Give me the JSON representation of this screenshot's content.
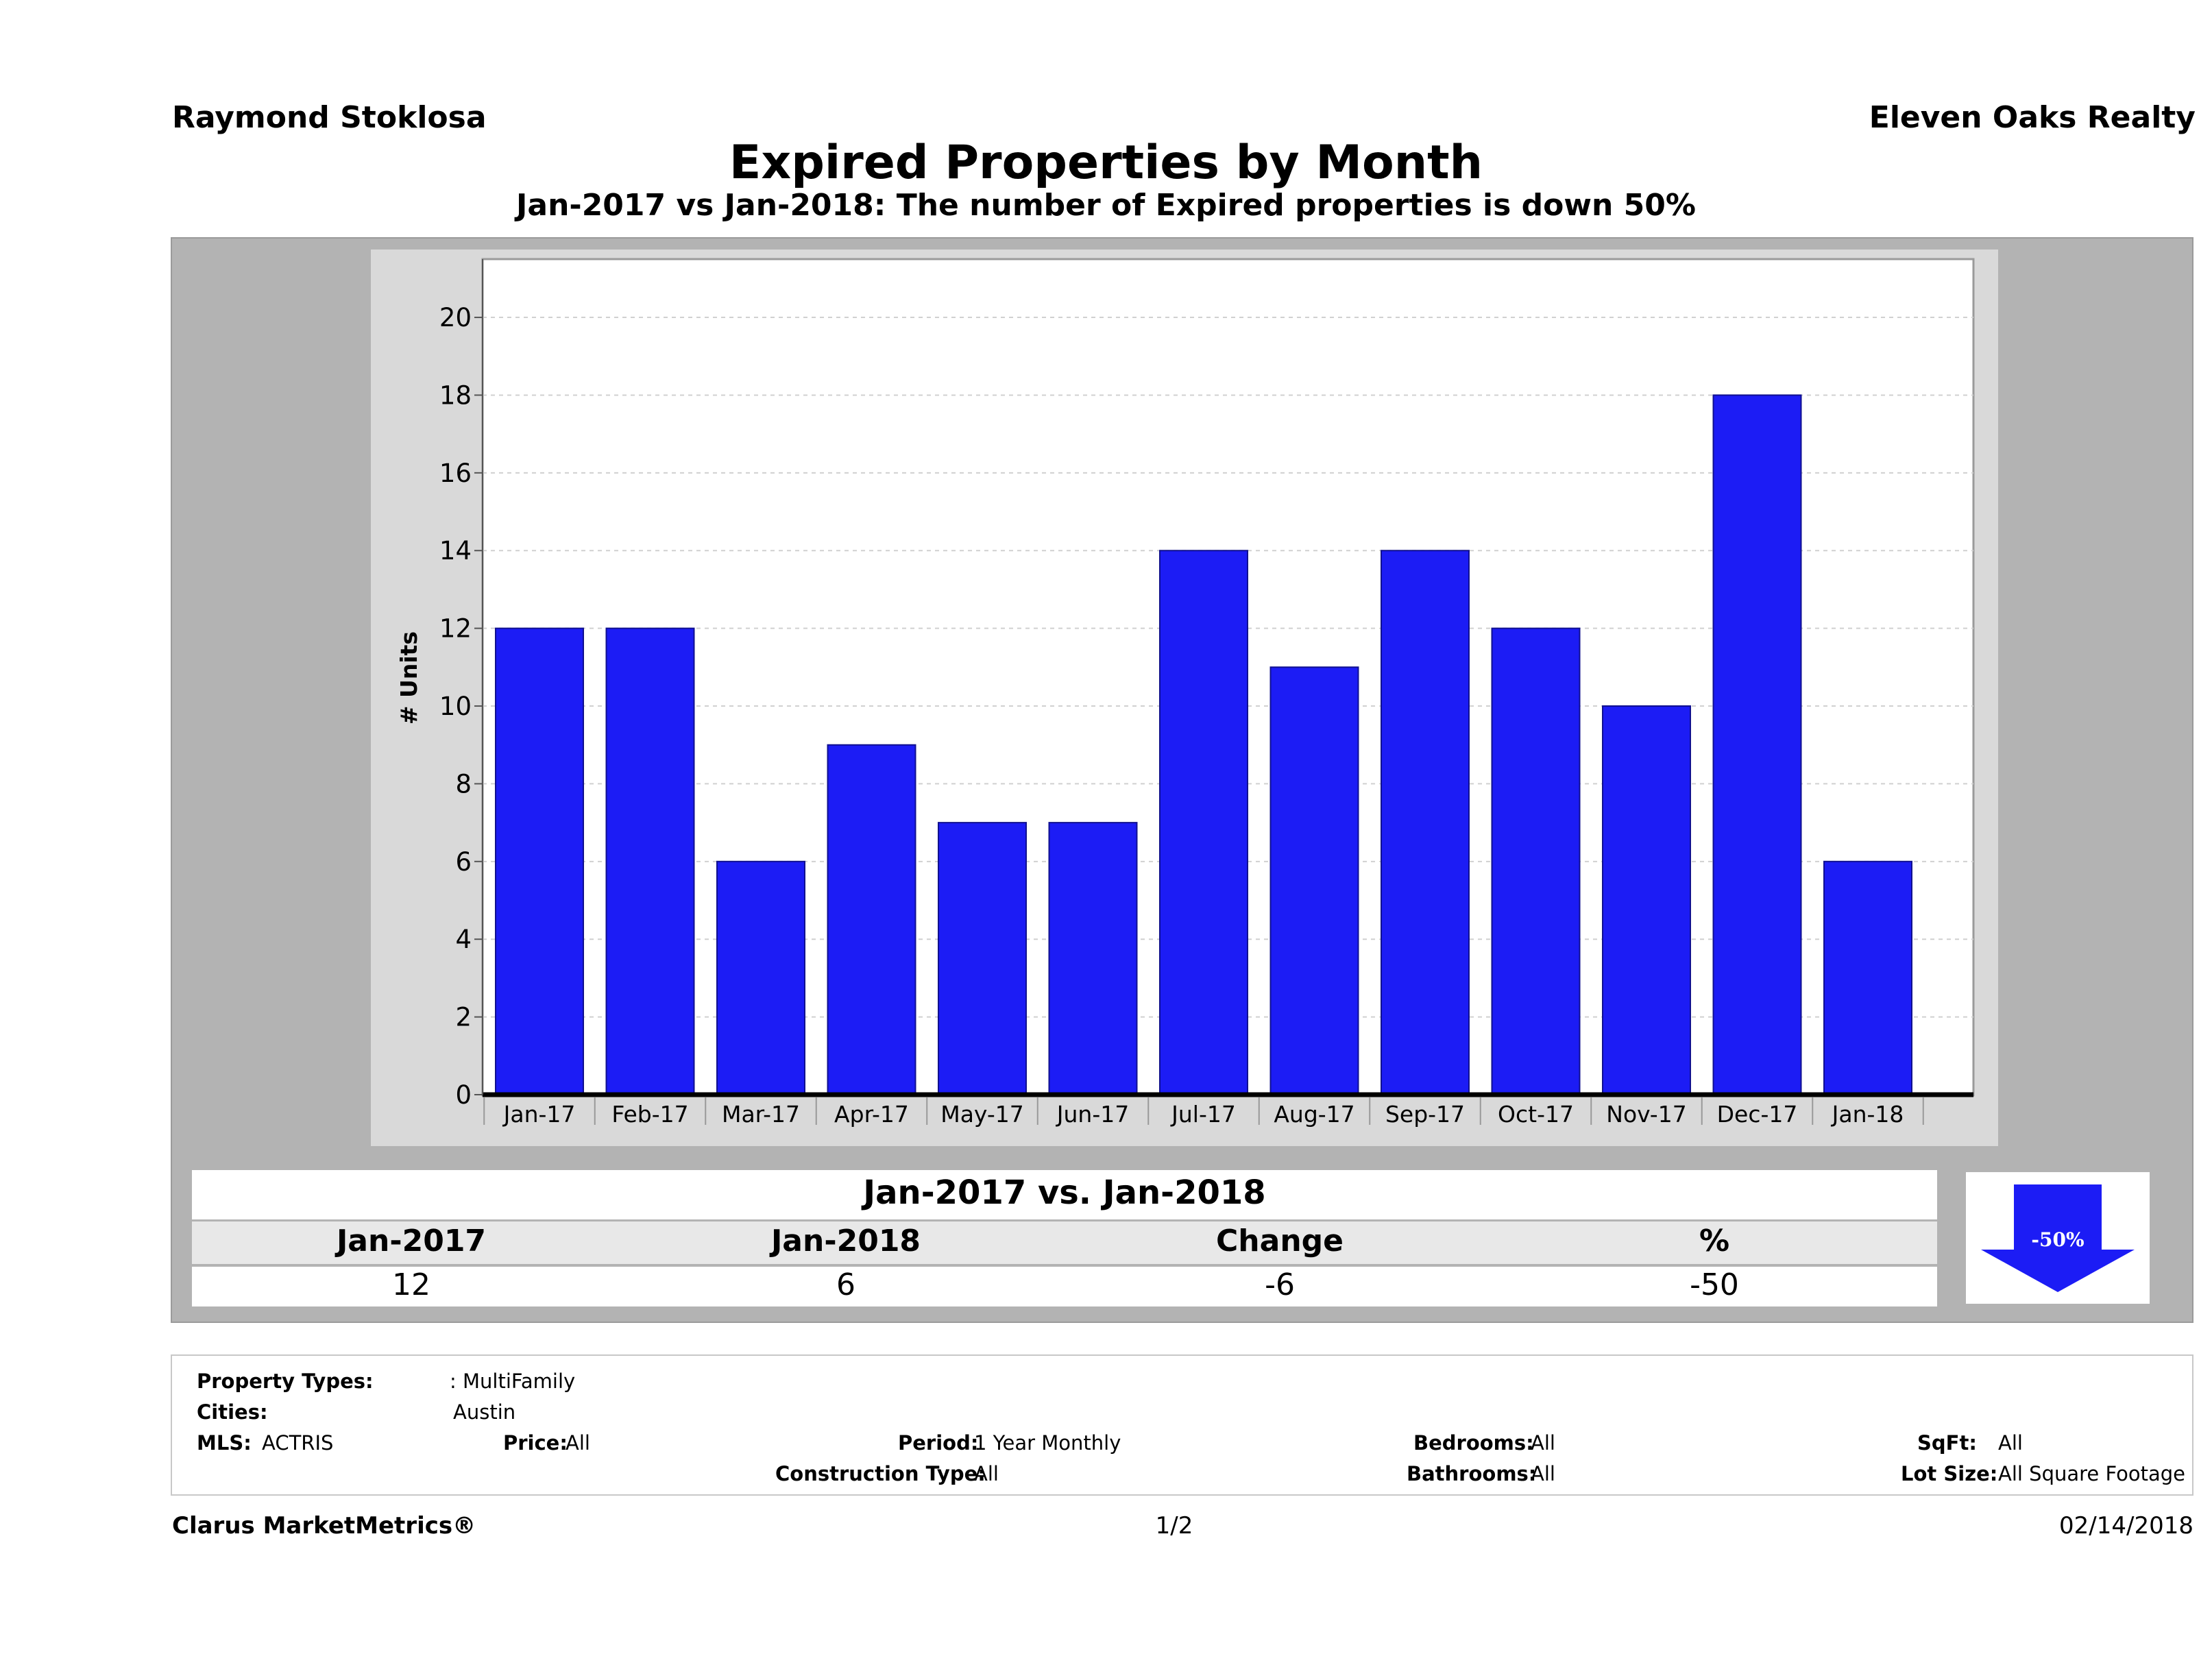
{
  "header": {
    "agent": "Raymond Stoklosa",
    "office": "Eleven Oaks Realty",
    "title": "Expired Properties by Month",
    "subtitle": "Jan-2017 vs Jan-2018: The number of Expired  properties is down 50%"
  },
  "chart_data": {
    "type": "bar",
    "ylabel": "# Units",
    "xlabel": "",
    "ylim": [
      0,
      21.5
    ],
    "yticks": [
      0,
      2,
      4,
      6,
      8,
      10,
      12,
      14,
      16,
      18,
      20
    ],
    "grid": true,
    "categories": [
      "Jan-17",
      "Feb-17",
      "Mar-17",
      "Apr-17",
      "May-17",
      "Jun-17",
      "Jul-17",
      "Aug-17",
      "Sep-17",
      "Oct-17",
      "Nov-17",
      "Dec-17",
      "Jan-18"
    ],
    "values": [
      12,
      12,
      6,
      9,
      7,
      7,
      14,
      11,
      14,
      12,
      10,
      18,
      6
    ],
    "bar_color": "#1c1cf5"
  },
  "summary": {
    "title": "Jan-2017 vs. Jan-2018",
    "headers": [
      "Jan-2017",
      "Jan-2018",
      "Change",
      "%"
    ],
    "values": [
      "12",
      "6",
      "-6",
      "-50"
    ],
    "badge": "-50%"
  },
  "filters": {
    "property_types_label": "Property Types:",
    "property_types_value": ": MultiFamily",
    "cities_label": "Cities:",
    "cities_value": "Austin",
    "mls_label": "MLS:",
    "mls_value": "ACTRIS",
    "price_label": "Price:",
    "price_value": "All",
    "period_label": "Period:",
    "period_value": "1 Year Monthly",
    "construction_label": "Construction Type:",
    "construction_value": "All",
    "bedrooms_label": "Bedrooms:",
    "bedrooms_value": "All",
    "bathrooms_label": "Bathrooms:",
    "bathrooms_value": "All",
    "sqft_label": "SqFt:",
    "sqft_value": "All",
    "lotsize_label": "Lot Size:",
    "lotsize_value": "All Square Footage"
  },
  "footer": {
    "brand": "Clarus MarketMetrics®",
    "page": "1/2",
    "date": "02/14/2018"
  }
}
